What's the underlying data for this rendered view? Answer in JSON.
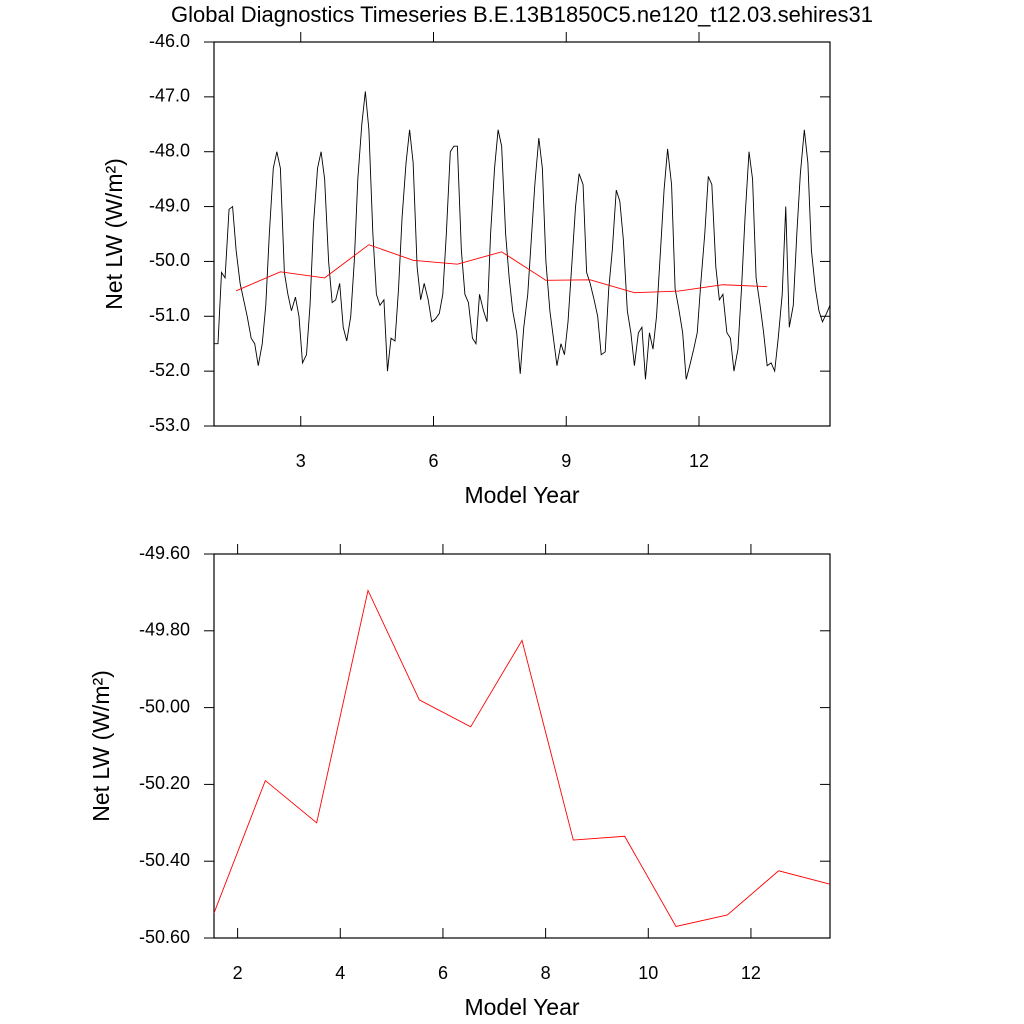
{
  "chart_data": [
    {
      "type": "line",
      "title": "Global Diagnostics Timeseries B.E.13B1850C5.ne120_t12.03.sehires31",
      "x_label": "Model Year",
      "y_label": "Net LW (W/m²)",
      "xlim": [
        1.04,
        14.96
      ],
      "xticks": [
        3,
        6,
        9,
        12
      ],
      "ylim": [
        -53,
        -46
      ],
      "yticks": [
        {
          "value": -53,
          "label": "-53.0"
        },
        {
          "value": -52,
          "label": "-52.0"
        },
        {
          "value": -51,
          "label": "-51.0"
        },
        {
          "value": -50,
          "label": "-50.0"
        },
        {
          "value": -49,
          "label": "-49.0"
        },
        {
          "value": -48,
          "label": "-48.0"
        },
        {
          "value": -47,
          "label": "-47.0"
        },
        {
          "value": -46,
          "label": "-46.0"
        }
      ],
      "x": [
        1.04,
        1.13,
        1.21,
        1.29,
        1.38,
        1.46,
        1.54,
        1.63,
        1.71,
        1.79,
        1.88,
        1.96,
        2.04,
        2.13,
        2.21,
        2.29,
        2.38,
        2.46,
        2.54,
        2.63,
        2.71,
        2.79,
        2.88,
        2.96,
        3.04,
        3.13,
        3.21,
        3.29,
        3.38,
        3.46,
        3.54,
        3.63,
        3.71,
        3.79,
        3.88,
        3.96,
        4.04,
        4.13,
        4.21,
        4.29,
        4.38,
        4.46,
        4.54,
        4.63,
        4.71,
        4.79,
        4.88,
        4.96,
        5.04,
        5.13,
        5.21,
        5.29,
        5.38,
        5.46,
        5.54,
        5.63,
        5.71,
        5.79,
        5.88,
        5.96,
        6.04,
        6.13,
        6.21,
        6.29,
        6.38,
        6.46,
        6.54,
        6.63,
        6.71,
        6.79,
        6.88,
        6.96,
        7.04,
        7.13,
        7.21,
        7.29,
        7.38,
        7.46,
        7.54,
        7.63,
        7.71,
        7.79,
        7.88,
        7.96,
        8.04,
        8.13,
        8.21,
        8.29,
        8.38,
        8.46,
        8.54,
        8.63,
        8.71,
        8.79,
        8.88,
        8.96,
        9.04,
        9.13,
        9.21,
        9.29,
        9.38,
        9.46,
        9.54,
        9.63,
        9.71,
        9.79,
        9.88,
        9.96,
        10.04,
        10.13,
        10.21,
        10.29,
        10.38,
        10.46,
        10.54,
        10.63,
        10.71,
        10.79,
        10.88,
        10.96,
        11.04,
        11.13,
        11.21,
        11.29,
        11.38,
        11.46,
        11.54,
        11.63,
        11.71,
        11.79,
        11.88,
        11.96,
        12.04,
        12.13,
        12.21,
        12.29,
        12.38,
        12.46,
        12.54,
        12.63,
        12.71,
        12.79,
        12.88,
        12.96,
        13.04,
        13.13,
        13.21,
        13.29,
        13.38,
        13.46,
        13.54,
        13.63,
        13.71,
        13.79,
        13.88,
        13.96,
        14.04,
        14.13,
        14.21,
        14.29,
        14.38,
        14.46,
        14.54,
        14.63,
        14.71,
        14.79,
        14.88,
        14.96
      ],
      "series": [
        {
          "color": "#000000",
          "values": [
            -51.5,
            -51.5,
            -50.2,
            -50.3,
            -49.05,
            -49.0,
            -49.8,
            -50.4,
            -50.7,
            -51.0,
            -51.4,
            -51.5,
            -51.9,
            -51.5,
            -50.8,
            -49.5,
            -48.3,
            -48.0,
            -48.3,
            -50.2,
            -50.6,
            -50.9,
            -50.65,
            -51.0,
            -51.85,
            -51.7,
            -50.8,
            -49.3,
            -48.3,
            -48.0,
            -48.5,
            -50.0,
            -50.75,
            -50.7,
            -50.4,
            -51.2,
            -51.45,
            -51.0,
            -50.0,
            -48.5,
            -47.5,
            -46.9,
            -47.6,
            -49.5,
            -50.6,
            -50.8,
            -50.7,
            -52.0,
            -51.4,
            -51.45,
            -50.5,
            -49.2,
            -48.2,
            -47.6,
            -48.2,
            -50.1,
            -50.7,
            -50.4,
            -50.7,
            -51.1,
            -51.05,
            -50.95,
            -50.6,
            -49.5,
            -48.0,
            -47.9,
            -47.9,
            -49.8,
            -50.6,
            -50.75,
            -51.4,
            -51.5,
            -50.6,
            -50.9,
            -51.1,
            -49.5,
            -48.3,
            -47.6,
            -47.9,
            -49.5,
            -50.3,
            -50.9,
            -51.3,
            -52.05,
            -51.2,
            -50.6,
            -49.6,
            -48.6,
            -47.75,
            -48.3,
            -50.0,
            -50.9,
            -51.4,
            -51.9,
            -51.5,
            -51.7,
            -51.1,
            -50.0,
            -49.0,
            -48.4,
            -48.6,
            -50.2,
            -50.4,
            -50.7,
            -51.0,
            -51.7,
            -51.65,
            -50.5,
            -49.8,
            -48.7,
            -48.9,
            -49.6,
            -50.9,
            -51.3,
            -51.9,
            -51.3,
            -51.2,
            -52.15,
            -51.3,
            -51.6,
            -51.0,
            -49.8,
            -48.7,
            -47.95,
            -48.6,
            -50.5,
            -50.85,
            -51.3,
            -52.15,
            -51.9,
            -51.6,
            -51.3,
            -50.4,
            -49.5,
            -48.45,
            -48.6,
            -50.1,
            -50.7,
            -50.6,
            -51.3,
            -51.4,
            -52.0,
            -51.6,
            -50.5,
            -49.2,
            -48.0,
            -48.5,
            -50.3,
            -50.8,
            -51.3,
            -51.9,
            -51.85,
            -52.0,
            -51.4,
            -50.6,
            -49.0,
            -51.2,
            -50.8,
            -49.5,
            -48.4,
            -47.6,
            -48.2,
            -49.8,
            -50.5,
            -50.9,
            -51.1,
            -50.95,
            -50.8
          ]
        },
        {
          "color": "#ff0000",
          "x": [
            1.54,
            2.54,
            3.54,
            4.54,
            5.54,
            6.54,
            7.54,
            8.54,
            9.54,
            10.54,
            11.54,
            12.54,
            13.54
          ],
          "values": [
            -50.535,
            -50.19,
            -50.3,
            -49.695,
            -49.98,
            -50.05,
            -49.825,
            -50.345,
            -50.335,
            -50.57,
            -50.54,
            -50.425,
            -50.46
          ]
        }
      ]
    },
    {
      "type": "line",
      "x_label": "Model Year",
      "y_label": "Net LW (W/m²)",
      "xlim": [
        1.54,
        13.54
      ],
      "xticks": [
        2,
        4,
        6,
        8,
        10,
        12
      ],
      "ylim": [
        -50.6,
        -49.6
      ],
      "yticks": [
        {
          "value": -50.6,
          "label": "-50.60"
        },
        {
          "value": -50.4,
          "label": "-50.40"
        },
        {
          "value": -50.2,
          "label": "-50.20"
        },
        {
          "value": -50.0,
          "label": "-50.00"
        },
        {
          "value": -49.8,
          "label": "-49.80"
        },
        {
          "value": -49.6,
          "label": "-49.60"
        }
      ],
      "x": [
        1.54,
        2.54,
        3.54,
        4.54,
        5.54,
        6.54,
        7.54,
        8.54,
        9.54,
        10.54,
        11.54,
        12.54,
        13.54
      ],
      "series": [
        {
          "color": "#ff0000",
          "values": [
            -50.535,
            -50.19,
            -50.3,
            -49.695,
            -49.98,
            -50.05,
            -49.825,
            -50.345,
            -50.335,
            -50.57,
            -50.54,
            -50.425,
            -50.46
          ]
        }
      ]
    }
  ]
}
